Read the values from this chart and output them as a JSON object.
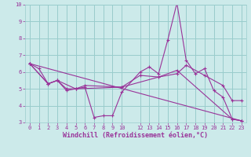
{
  "xlabel": "Windchill (Refroidissement éolien,°C)",
  "xlim": [
    -0.5,
    23.5
  ],
  "ylim": [
    3,
    10
  ],
  "xtick_positions": [
    0,
    1,
    2,
    3,
    4,
    5,
    6,
    7,
    8,
    9,
    10,
    12,
    13,
    14,
    15,
    16,
    17,
    18,
    19,
    20,
    21,
    22,
    23
  ],
  "xtick_labels": [
    "0",
    "1",
    "2",
    "3",
    "4",
    "5",
    "6",
    "7",
    "8",
    "9",
    "10",
    "12",
    "13",
    "14",
    "15",
    "16",
    "17",
    "18",
    "19",
    "20",
    "21",
    "22",
    "23"
  ],
  "yticks": [
    3,
    4,
    5,
    6,
    7,
    8,
    9,
    10
  ],
  "bg_color": "#cceaea",
  "grid_color": "#99cccc",
  "line_color": "#993399",
  "lines": [
    {
      "x": [
        0,
        1,
        2,
        3,
        4,
        5,
        6,
        7,
        8,
        9,
        10,
        12,
        13,
        14,
        15,
        16,
        17,
        18,
        19,
        20,
        21,
        22,
        23
      ],
      "y": [
        6.5,
        6.2,
        5.3,
        5.5,
        5.0,
        5.0,
        5.1,
        3.3,
        3.4,
        3.4,
        4.8,
        6.0,
        6.3,
        5.9,
        7.9,
        10.1,
        6.7,
        5.9,
        6.2,
        4.9,
        4.5,
        3.2,
        3.1
      ]
    },
    {
      "x": [
        0,
        2,
        3,
        4,
        5,
        6,
        10,
        12,
        14,
        16,
        17,
        19,
        21,
        22,
        23
      ],
      "y": [
        6.5,
        5.3,
        5.5,
        4.9,
        5.0,
        5.2,
        5.1,
        5.8,
        5.7,
        5.9,
        6.4,
        5.8,
        5.2,
        4.3,
        4.3
      ]
    },
    {
      "x": [
        0,
        2,
        3,
        5,
        10,
        14,
        16,
        22,
        23
      ],
      "y": [
        6.5,
        5.3,
        5.5,
        5.0,
        5.1,
        5.7,
        6.1,
        3.2,
        3.1
      ]
    },
    {
      "x": [
        0,
        23
      ],
      "y": [
        6.5,
        3.1
      ]
    }
  ],
  "label_fontsize": 6,
  "tick_fontsize": 5
}
